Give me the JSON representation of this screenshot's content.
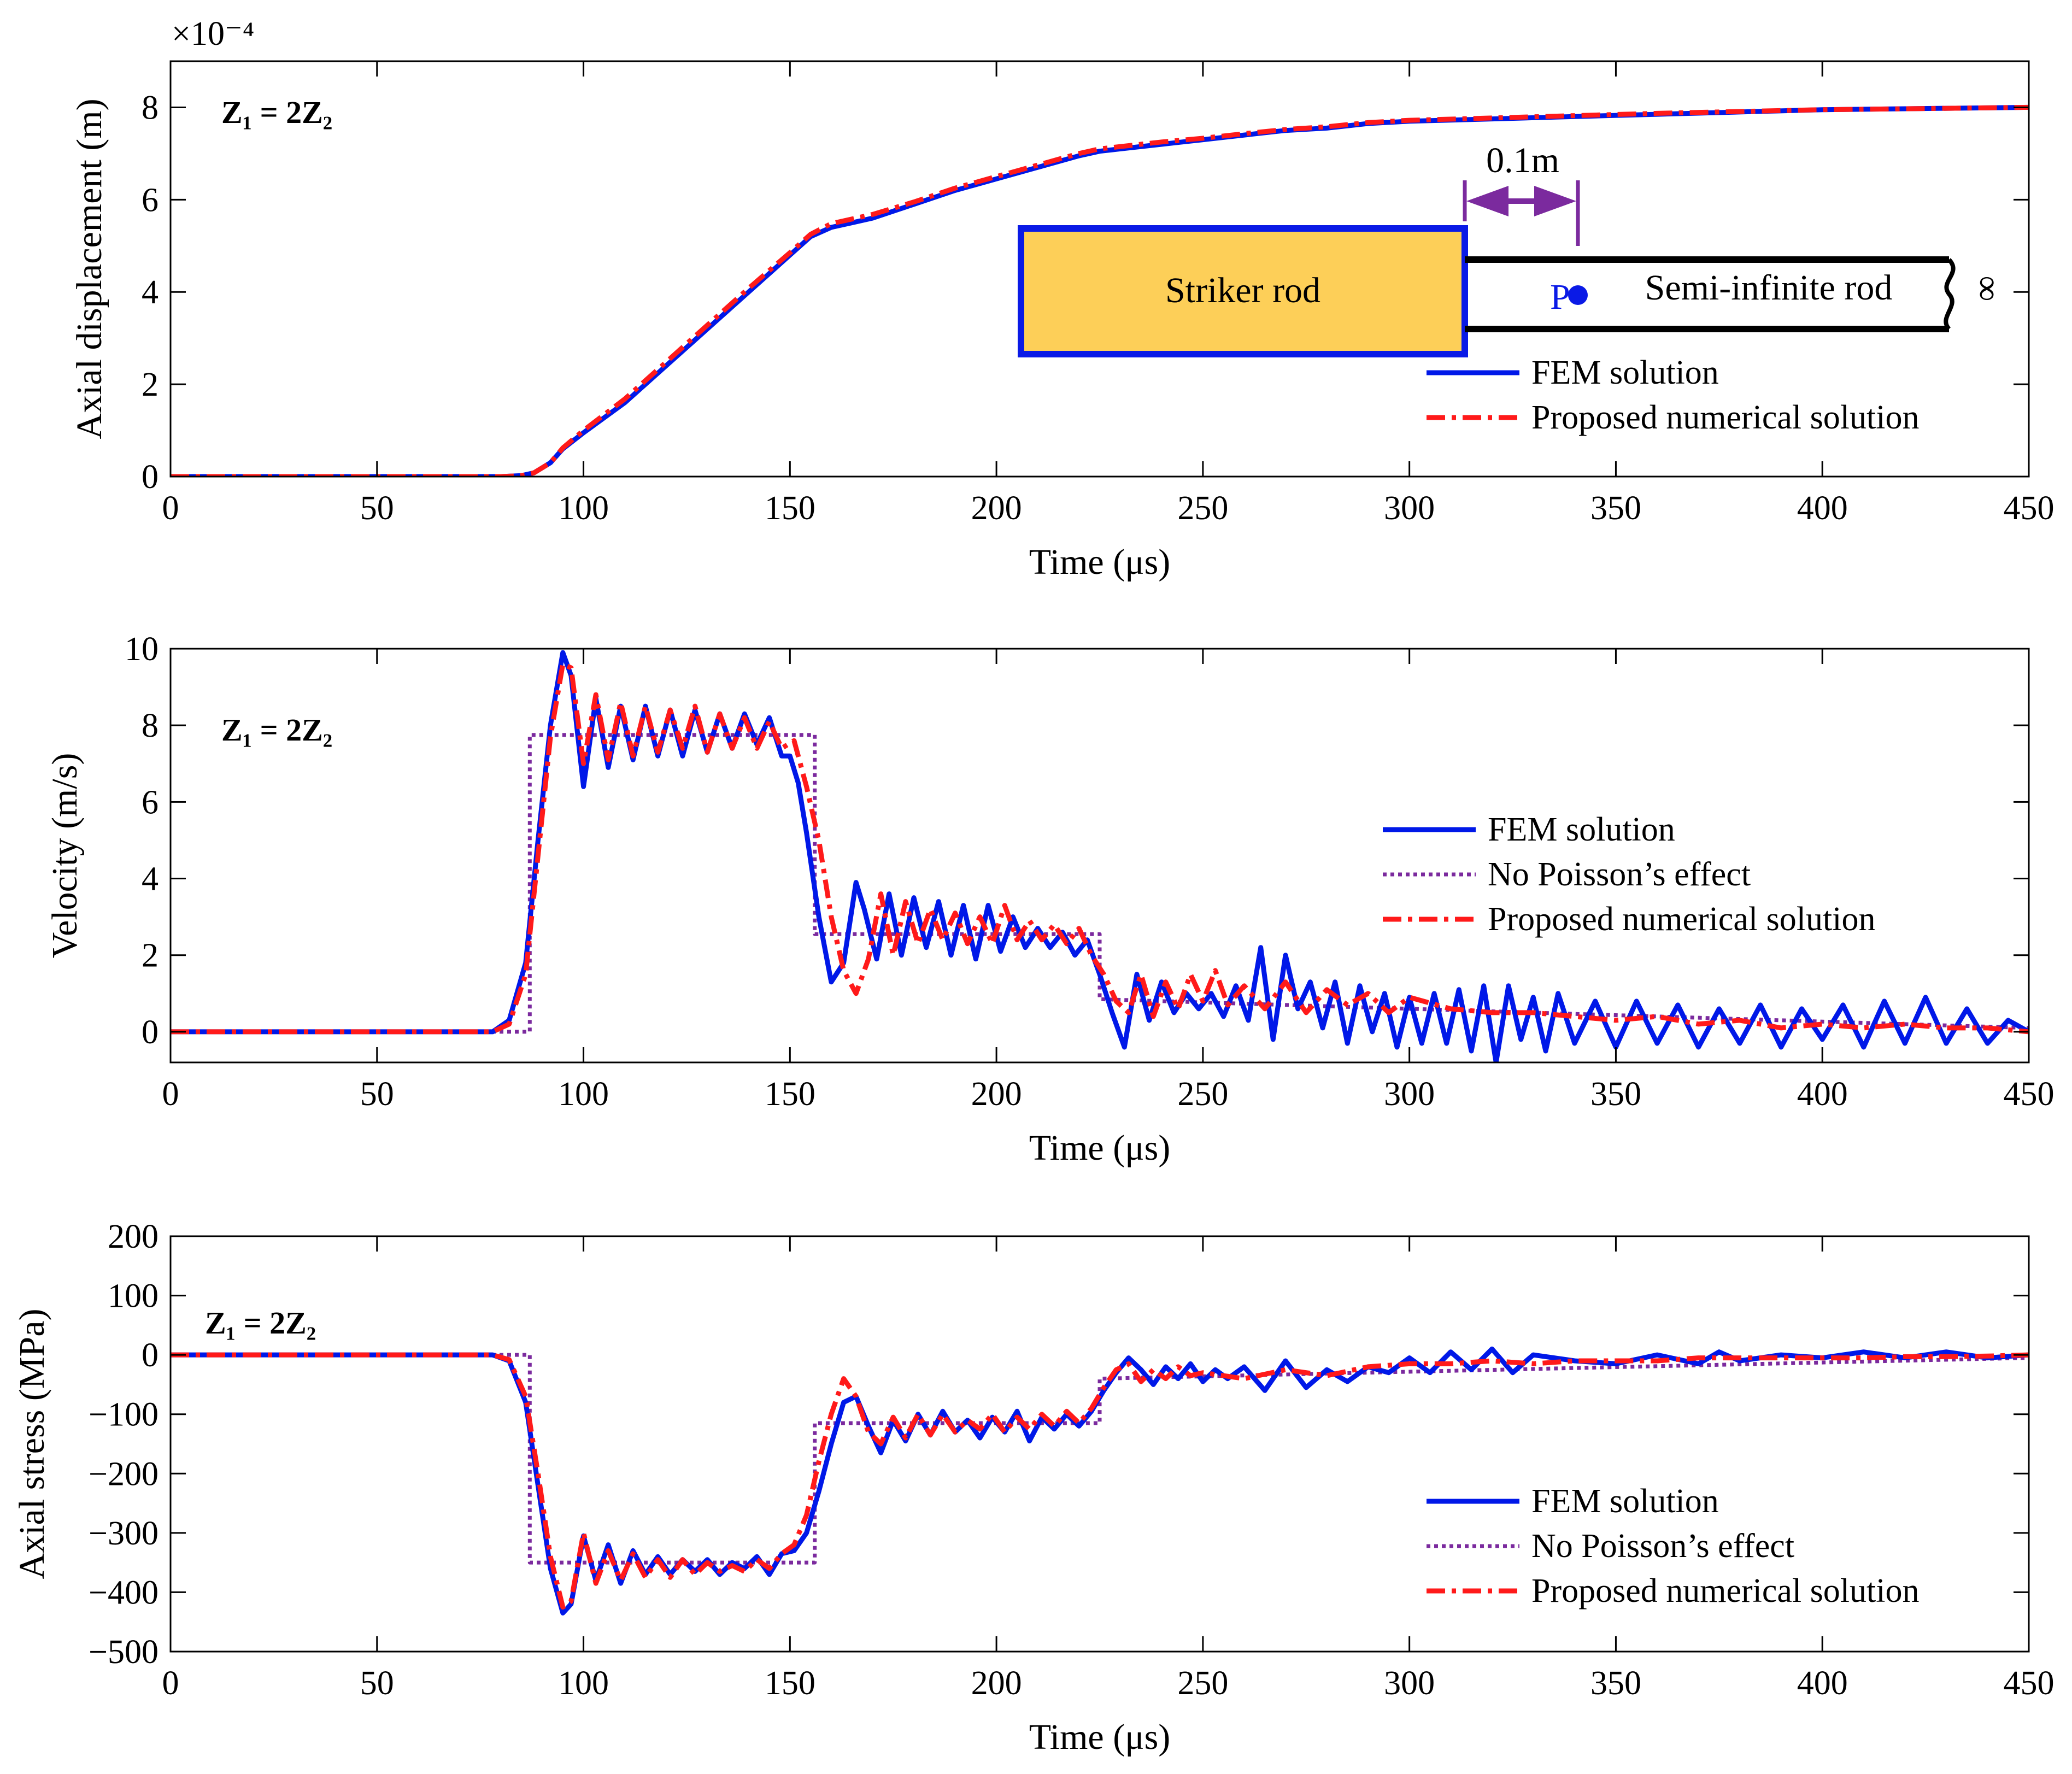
{
  "chart_data": [
    {
      "type": "line",
      "xlabel": "Time (μs)",
      "ylabel": "Axial displacement (m)",
      "exponent_label": "×10⁻⁴",
      "annotation": "Z₁ = 2Z₂",
      "xlim": [
        0,
        450
      ],
      "ylim": [
        0,
        9
      ],
      "xticks": [
        "0",
        "50",
        "100",
        "150",
        "200",
        "250",
        "300",
        "350",
        "400",
        "450"
      ],
      "yticks": [
        "0",
        "2",
        "4",
        "6",
        "8"
      ],
      "xtick_values": [
        0,
        50,
        100,
        150,
        200,
        250,
        300,
        350,
        400,
        450
      ],
      "ytick_values": [
        0,
        2,
        4,
        6,
        8
      ],
      "legend": [
        "FEM solution",
        "Proposed numerical solution"
      ],
      "series": [
        {
          "name": "FEM solution",
          "color": "#0018e8",
          "style": "solid",
          "x": [
            0,
            80,
            85,
            88,
            92,
            95,
            100,
            110,
            120,
            130,
            140,
            150,
            155,
            160,
            165,
            170,
            180,
            190,
            200,
            210,
            220,
            225,
            230,
            240,
            250,
            260,
            270,
            280,
            290,
            300,
            320,
            340,
            360,
            380,
            400,
            420,
            450
          ],
          "y": [
            0,
            0,
            0.02,
            0.08,
            0.3,
            0.6,
            0.95,
            1.6,
            2.4,
            3.2,
            4.0,
            4.8,
            5.2,
            5.4,
            5.5,
            5.6,
            5.9,
            6.2,
            6.45,
            6.7,
            6.95,
            7.05,
            7.1,
            7.2,
            7.3,
            7.4,
            7.5,
            7.55,
            7.65,
            7.7,
            7.75,
            7.8,
            7.85,
            7.9,
            7.95,
            7.97,
            8.0
          ]
        },
        {
          "name": "Proposed numerical solution",
          "color": "#ff1a1a",
          "style": "dashdot",
          "x": [
            0,
            80,
            85,
            88,
            92,
            95,
            100,
            110,
            120,
            130,
            140,
            150,
            155,
            160,
            165,
            170,
            180,
            190,
            200,
            210,
            220,
            225,
            230,
            240,
            250,
            260,
            270,
            280,
            290,
            300,
            320,
            340,
            360,
            380,
            400,
            420,
            450
          ],
          "y": [
            0,
            0,
            0.02,
            0.08,
            0.3,
            0.62,
            1.0,
            1.68,
            2.48,
            3.28,
            4.08,
            4.85,
            5.25,
            5.48,
            5.58,
            5.68,
            5.95,
            6.25,
            6.5,
            6.75,
            7.0,
            7.1,
            7.15,
            7.25,
            7.33,
            7.43,
            7.52,
            7.58,
            7.67,
            7.72,
            7.77,
            7.82,
            7.87,
            7.91,
            7.95,
            7.97,
            8.0
          ]
        }
      ]
    },
    {
      "type": "line",
      "xlabel": "Time (μs)",
      "ylabel": "Velocity (m/s)",
      "annotation": "Z₁ = 2Z₂",
      "xlim": [
        0,
        450
      ],
      "ylim": [
        -0.8,
        10
      ],
      "xticks": [
        "0",
        "50",
        "100",
        "150",
        "200",
        "250",
        "300",
        "350",
        "400",
        "450"
      ],
      "yticks": [
        "0",
        "2",
        "4",
        "6",
        "8",
        "10"
      ],
      "xtick_values": [
        0,
        50,
        100,
        150,
        200,
        250,
        300,
        350,
        400,
        450
      ],
      "ytick_values": [
        0,
        2,
        4,
        6,
        8,
        10
      ],
      "legend": [
        "FEM solution",
        "No Poisson’s effect",
        "Proposed numerical solution"
      ],
      "series": [
        {
          "name": "FEM solution",
          "color": "#0018e8",
          "style": "solid",
          "x": [
            0,
            78,
            82,
            86,
            89,
            92,
            95,
            97,
            100,
            103,
            106,
            109,
            112,
            115,
            118,
            121,
            124,
            127,
            130,
            133,
            136,
            139,
            142,
            145,
            148,
            150,
            152,
            154,
            157,
            160,
            163,
            166,
            168,
            171,
            174,
            177,
            180,
            183,
            186,
            189,
            192,
            195,
            198,
            201,
            204,
            207,
            210,
            213,
            216,
            219,
            222,
            225,
            228,
            231,
            234,
            237,
            240,
            243,
            246,
            249,
            252,
            255,
            258,
            261,
            264,
            267,
            270,
            273,
            276,
            279,
            282,
            285,
            288,
            291,
            294,
            297,
            300,
            303,
            306,
            309,
            312,
            315,
            318,
            321,
            324,
            327,
            330,
            333,
            336,
            340,
            345,
            350,
            355,
            360,
            365,
            370,
            375,
            380,
            385,
            390,
            395,
            400,
            405,
            410,
            415,
            420,
            425,
            430,
            435,
            440,
            445,
            450
          ],
          "y": [
            0,
            0,
            0.3,
            1.8,
            5.0,
            8.0,
            9.9,
            9.3,
            6.4,
            8.7,
            6.9,
            8.5,
            7.1,
            8.5,
            7.2,
            8.4,
            7.2,
            8.4,
            7.3,
            8.3,
            7.4,
            8.3,
            7.5,
            8.2,
            7.2,
            7.2,
            6.5,
            5.2,
            3.0,
            1.3,
            1.8,
            3.9,
            3.2,
            1.9,
            3.6,
            2.0,
            3.5,
            2.2,
            3.4,
            2.0,
            3.3,
            1.9,
            3.3,
            2.1,
            3.0,
            2.2,
            2.7,
            2.2,
            2.6,
            2.0,
            2.4,
            1.5,
            0.5,
            -0.4,
            1.5,
            0.3,
            1.3,
            0.5,
            1.0,
            0.6,
            1.0,
            0.4,
            1.2,
            0.3,
            2.2,
            -0.2,
            2.0,
            0.6,
            1.3,
            0.1,
            1.3,
            -0.3,
            1.2,
            0.0,
            1.0,
            -0.4,
            0.9,
            -0.3,
            1.0,
            -0.3,
            1.1,
            -0.5,
            1.2,
            -0.8,
            1.2,
            -0.2,
            0.9,
            -0.5,
            1.0,
            -0.3,
            0.8,
            -0.4,
            0.8,
            -0.3,
            0.7,
            -0.4,
            0.6,
            -0.3,
            0.7,
            -0.4,
            0.6,
            -0.2,
            0.7,
            -0.4,
            0.8,
            -0.3,
            0.9,
            -0.3,
            0.6,
            -0.3,
            0.3,
            0.0
          ]
        },
        {
          "name": "No Poisson’s effect",
          "color": "#7b2a9e",
          "style": "dotted",
          "x": [
            0,
            87,
            87,
            156,
            156,
            225,
            225,
            450
          ],
          "y": [
            0,
            0,
            7.75,
            7.75,
            2.55,
            2.55,
            0.85,
            0.1
          ]
        },
        {
          "name": "Proposed numerical solution",
          "color": "#ff1a1a",
          "style": "dashdot",
          "x": [
            0,
            78,
            82,
            86,
            89,
            92,
            95,
            97,
            100,
            103,
            106,
            109,
            112,
            115,
            118,
            121,
            124,
            127,
            130,
            133,
            136,
            139,
            142,
            145,
            148,
            151,
            154,
            157,
            160,
            163,
            166,
            169,
            172,
            175,
            178,
            181,
            184,
            187,
            190,
            193,
            196,
            199,
            202,
            205,
            208,
            211,
            214,
            217,
            220,
            223,
            226,
            229,
            232,
            235,
            238,
            241,
            244,
            247,
            250,
            253,
            256,
            260,
            265,
            270,
            275,
            280,
            285,
            290,
            295,
            300,
            310,
            320,
            330,
            340,
            350,
            360,
            370,
            380,
            390,
            400,
            410,
            420,
            430,
            440,
            450
          ],
          "y": [
            0,
            0,
            0.2,
            1.5,
            4.6,
            7.7,
            9.6,
            9.5,
            7.0,
            8.8,
            7.1,
            8.6,
            7.2,
            8.5,
            7.3,
            8.4,
            7.4,
            8.5,
            7.3,
            8.3,
            7.4,
            8.2,
            7.4,
            8.1,
            7.4,
            7.6,
            6.4,
            5.0,
            3.0,
            1.6,
            1.0,
            1.9,
            3.6,
            2.0,
            3.4,
            2.3,
            3.2,
            2.4,
            3.1,
            2.3,
            3.0,
            2.3,
            3.3,
            2.4,
            2.9,
            2.4,
            2.8,
            2.3,
            2.7,
            2.0,
            1.5,
            0.8,
            0.5,
            1.5,
            0.4,
            1.3,
            0.6,
            1.5,
            0.8,
            1.6,
            0.7,
            1.2,
            0.6,
            1.3,
            0.5,
            1.1,
            0.7,
            1.0,
            0.5,
            0.9,
            0.6,
            0.5,
            0.5,
            0.4,
            0.3,
            0.4,
            0.2,
            0.3,
            0.1,
            0.2,
            0.1,
            0.2,
            0.1,
            0.1,
            0.0
          ]
        }
      ]
    },
    {
      "type": "line",
      "xlabel": "Time (μs)",
      "ylabel": "Axial stress (MPa)",
      "annotation": "Z₁ = 2Z₂",
      "xlim": [
        0,
        450
      ],
      "ylim": [
        -500,
        200
      ],
      "xticks": [
        "0",
        "50",
        "100",
        "150",
        "200",
        "250",
        "300",
        "350",
        "400",
        "450"
      ],
      "yticks": [
        "−500",
        "−400",
        "−300",
        "−200",
        "−100",
        "0",
        "100",
        "200"
      ],
      "xtick_values": [
        0,
        50,
        100,
        150,
        200,
        250,
        300,
        350,
        400,
        450
      ],
      "ytick_values": [
        -500,
        -400,
        -300,
        -200,
        -100,
        0,
        100,
        200
      ],
      "legend": [
        "FEM solution",
        "No Poisson’s effect",
        "Proposed numerical solution"
      ],
      "series": [
        {
          "name": "FEM solution",
          "color": "#0018e8",
          "style": "solid",
          "x": [
            0,
            78,
            82,
            86,
            89,
            92,
            95,
            97,
            100,
            103,
            106,
            109,
            112,
            115,
            118,
            121,
            124,
            127,
            130,
            133,
            136,
            139,
            142,
            145,
            148,
            151,
            154,
            157,
            160,
            163,
            166,
            169,
            172,
            175,
            178,
            181,
            184,
            187,
            190,
            193,
            196,
            199,
            202,
            205,
            208,
            211,
            214,
            217,
            220,
            223,
            226,
            229,
            232,
            235,
            238,
            241,
            244,
            247,
            250,
            253,
            256,
            260,
            265,
            270,
            275,
            280,
            285,
            290,
            295,
            300,
            305,
            310,
            315,
            320,
            325,
            330,
            340,
            350,
            360,
            370,
            375,
            380,
            390,
            400,
            410,
            420,
            430,
            440,
            450
          ],
          "y": [
            0,
            0,
            -10,
            -80,
            -220,
            -360,
            -435,
            -420,
            -305,
            -380,
            -320,
            -385,
            -330,
            -370,
            -340,
            -370,
            -345,
            -365,
            -345,
            -370,
            -350,
            -360,
            -340,
            -370,
            -335,
            -330,
            -300,
            -230,
            -150,
            -80,
            -70,
            -120,
            -165,
            -110,
            -145,
            -100,
            -135,
            -95,
            -130,
            -110,
            -140,
            -105,
            -130,
            -95,
            -145,
            -105,
            -125,
            -100,
            -120,
            -95,
            -60,
            -30,
            -5,
            -25,
            -50,
            -20,
            -40,
            -15,
            -45,
            -25,
            -40,
            -20,
            -60,
            -10,
            -55,
            -25,
            -45,
            -20,
            -30,
            -5,
            -30,
            5,
            -25,
            10,
            -30,
            0,
            -10,
            -15,
            0,
            -15,
            5,
            -10,
            0,
            -5,
            5,
            -5,
            5,
            -5,
            0
          ]
        },
        {
          "name": "No Poisson’s effect",
          "color": "#7b2a9e",
          "style": "dotted",
          "x": [
            0,
            87,
            87,
            156,
            156,
            225,
            225,
            450
          ],
          "y": [
            0,
            0,
            -350,
            -350,
            -115,
            -115,
            -40,
            -5
          ]
        },
        {
          "name": "Proposed numerical solution",
          "color": "#ff1a1a",
          "style": "dashdot",
          "x": [
            0,
            78,
            82,
            86,
            89,
            92,
            95,
            97,
            100,
            103,
            106,
            109,
            112,
            115,
            118,
            121,
            124,
            127,
            130,
            133,
            136,
            139,
            142,
            145,
            148,
            151,
            154,
            157,
            160,
            163,
            166,
            169,
            172,
            175,
            178,
            181,
            184,
            187,
            190,
            193,
            196,
            199,
            202,
            205,
            208,
            211,
            214,
            217,
            220,
            223,
            226,
            229,
            232,
            235,
            238,
            241,
            244,
            247,
            250,
            260,
            270,
            280,
            290,
            300,
            310,
            320,
            330,
            340,
            350,
            360,
            370,
            380,
            390,
            400,
            410,
            420,
            430,
            440,
            450
          ],
          "y": [
            0,
            0,
            -8,
            -70,
            -200,
            -340,
            -425,
            -415,
            -300,
            -385,
            -330,
            -380,
            -335,
            -375,
            -345,
            -375,
            -345,
            -370,
            -350,
            -365,
            -355,
            -365,
            -345,
            -360,
            -335,
            -320,
            -270,
            -180,
            -100,
            -40,
            -70,
            -130,
            -150,
            -105,
            -140,
            -100,
            -135,
            -100,
            -130,
            -110,
            -125,
            -100,
            -130,
            -105,
            -125,
            -100,
            -120,
            -95,
            -115,
            -90,
            -55,
            -25,
            -15,
            -45,
            -25,
            -40,
            -20,
            -35,
            -30,
            -40,
            -25,
            -35,
            -20,
            -15,
            -15,
            -10,
            -15,
            -10,
            -10,
            -10,
            -5,
            -5,
            -5,
            -5,
            -5,
            -3,
            -3,
            -2,
            0
          ]
        }
      ]
    }
  ],
  "diagram": {
    "striker_label": "Striker rod",
    "rod_label": "Semi-infinite rod",
    "point_label": "P",
    "distance_label": "0.1m",
    "infinity_symbol": "∞"
  }
}
